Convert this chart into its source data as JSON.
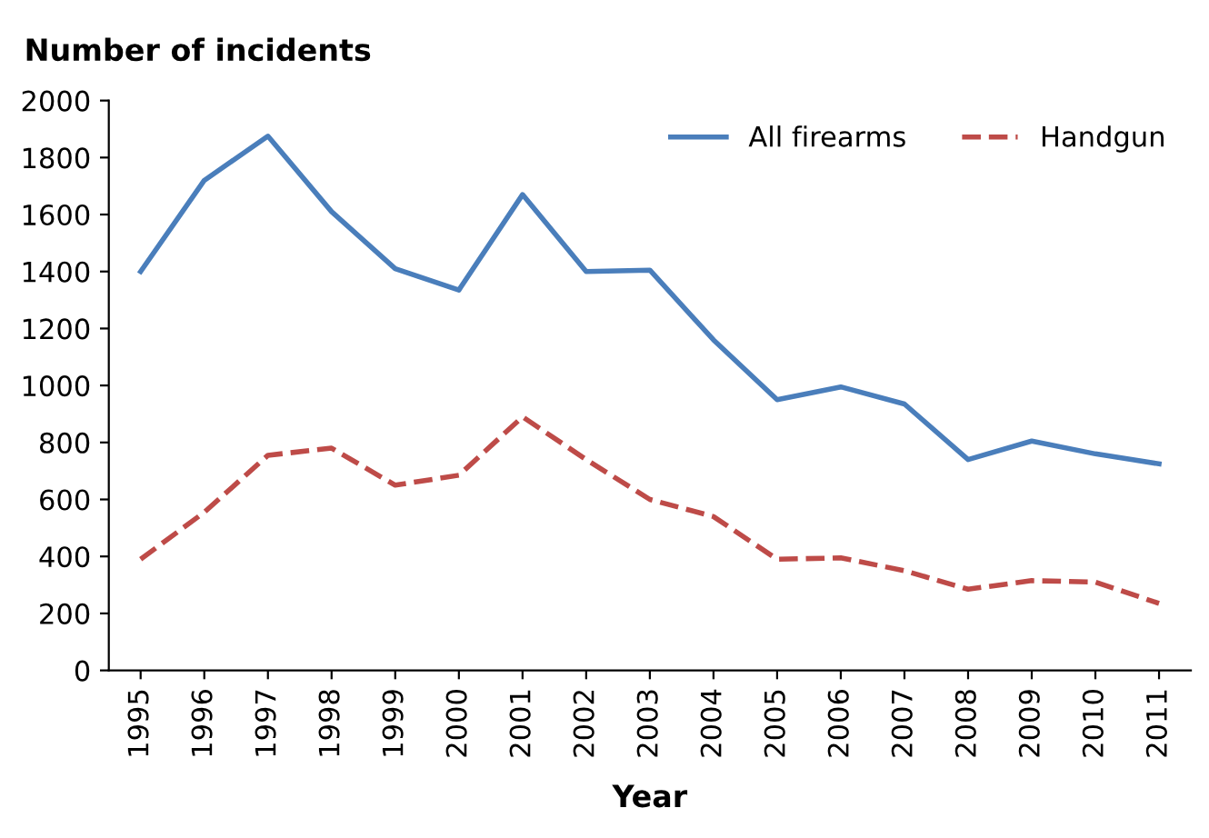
{
  "chart_data": {
    "type": "line",
    "ylabel": "Number of incidents",
    "xlabel": "Year",
    "categories": [
      "1995",
      "1996",
      "1997",
      "1998",
      "1999",
      "2000",
      "2001",
      "2002",
      "2003",
      "2004",
      "2005",
      "2006",
      "2007",
      "2008",
      "2009",
      "2010",
      "2011"
    ],
    "series": [
      {
        "name": "All firearms",
        "color": "#4a7ebb",
        "line_style": "solid",
        "values": [
          1400,
          1720,
          1875,
          1610,
          1410,
          1335,
          1670,
          1400,
          1405,
          1160,
          950,
          995,
          935,
          740,
          805,
          760,
          725
        ]
      },
      {
        "name": "Handgun",
        "color": "#be4b48",
        "line_style": "dashed",
        "values": [
          390,
          555,
          755,
          780,
          650,
          685,
          890,
          740,
          600,
          540,
          390,
          395,
          350,
          285,
          315,
          310,
          235
        ]
      }
    ],
    "ylim": [
      0,
      2000
    ],
    "yticks": [
      0,
      200,
      400,
      600,
      800,
      1000,
      1200,
      1400,
      1600,
      1800,
      2000
    ],
    "grid": false,
    "legend": "top right",
    "marker": "none"
  }
}
